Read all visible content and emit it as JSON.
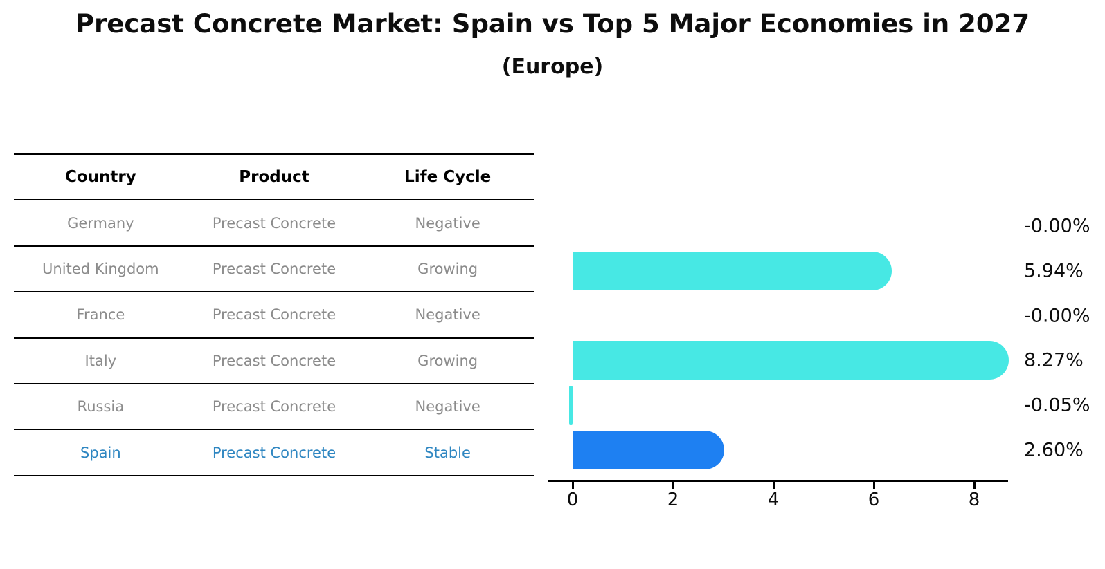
{
  "title": "Precast Concrete Market: Spain vs Top 5 Major Economies in 2027",
  "subtitle": "(Europe)",
  "table": {
    "headers": [
      "Country",
      "Product",
      "Life Cycle"
    ],
    "rows": [
      {
        "country": "Germany",
        "product": "Precast Concrete",
        "life_cycle": "Negative",
        "highlight": false
      },
      {
        "country": "United Kingdom",
        "product": "Precast Concrete",
        "life_cycle": "Growing",
        "highlight": false
      },
      {
        "country": "France",
        "product": "Precast Concrete",
        "life_cycle": "Negative",
        "highlight": false
      },
      {
        "country": "Italy",
        "product": "Precast Concrete",
        "life_cycle": "Growing",
        "highlight": false
      },
      {
        "country": "Russia",
        "product": "Precast Concrete",
        "life_cycle": "Negative",
        "highlight": false
      },
      {
        "country": "Spain",
        "product": "Precast Concrete",
        "life_cycle": "Stable",
        "highlight": true
      }
    ]
  },
  "chart_data": {
    "type": "bar",
    "orientation": "horizontal",
    "title": "Precast Concrete Market: Spain vs Top 5 Major Economies in 2027",
    "subtitle": "(Europe)",
    "categories": [
      "Germany",
      "United Kingdom",
      "France",
      "Italy",
      "Russia",
      "Spain"
    ],
    "values": [
      -0.0,
      5.94,
      -0.0,
      8.27,
      -0.05,
      2.6
    ],
    "value_labels": [
      "-0.00%",
      "5.94%",
      "-0.00%",
      "8.27%",
      "-0.05%",
      "2.60%"
    ],
    "unit": "%",
    "xticks": [
      0,
      2,
      4,
      6,
      8
    ],
    "xlim": [
      0,
      8.7
    ],
    "grid": false,
    "legend": "none",
    "highlight_category": "Spain",
    "colors": {
      "bar_default": "#47e8e4",
      "bar_highlight": "#1e80f2",
      "highlight_text": "#2e86c1",
      "table_text": "#8b8b8b",
      "header_text": "#000000",
      "axis": "#000000"
    }
  }
}
